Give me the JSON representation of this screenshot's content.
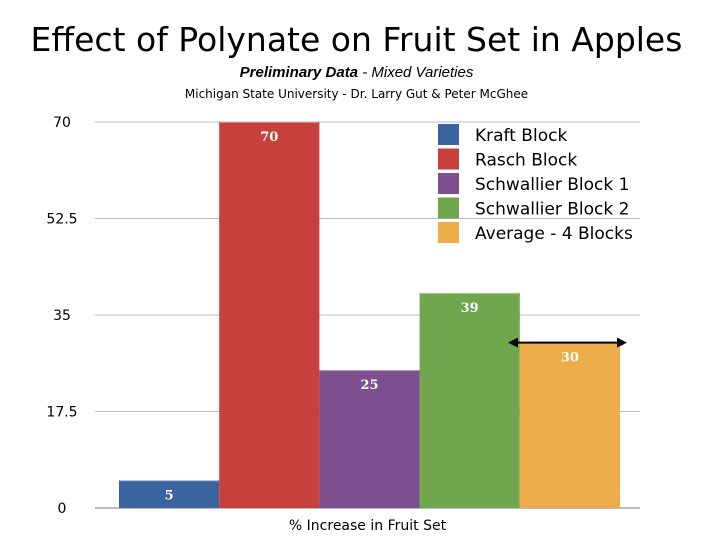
{
  "title": "Effect of Polynate on Fruit Set in Apples",
  "subtitle_bold": "Preliminary Data",
  "subtitle_rest": " - Mixed Varieties",
  "credit": "Michigan State University - Dr. Larry Gut & Peter McGhee",
  "chart_data": {
    "type": "bar",
    "title": "Effect of Polynate on Fruit Set in Apples",
    "xlabel": "% Increase in Fruit Set",
    "ylabel": "",
    "ylim": [
      0,
      70
    ],
    "yticks": [
      "0",
      "17.5",
      "35",
      "52.5",
      "70"
    ],
    "ytick_values": [
      0,
      17.5,
      35,
      52.5,
      70
    ],
    "grid": true,
    "legend_position": "top-right",
    "series": [
      {
        "name": "Kraft Block",
        "value": 5,
        "label": "5",
        "color": "#3A64A0"
      },
      {
        "name": "Rasch Block",
        "value": 70,
        "label": "70",
        "color": "#C8403C"
      },
      {
        "name": "Schwallier Block 1",
        "value": 25,
        "label": "25",
        "color": "#7E4F8F"
      },
      {
        "name": "Schwallier Block 2",
        "value": 39,
        "label": "39",
        "color": "#6FA64E"
      },
      {
        "name": "Average - 4 Blocks",
        "value": 30,
        "label": "30",
        "color": "#EDAE4A"
      }
    ],
    "annotation": "double-headed arrow at the Average - 4 Blocks value"
  }
}
